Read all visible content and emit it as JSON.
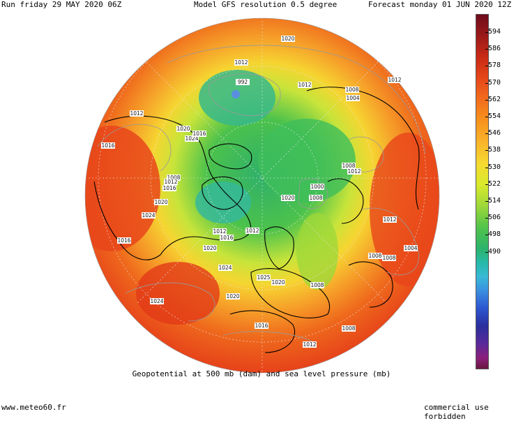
{
  "header": {
    "left": "Run friday 29 MAY 2020 06Z",
    "center": "Model GFS resolution 0.5 degree",
    "right": "Forecast monday 01 JUN 2020 12Z"
  },
  "caption": "Geopotential at 500 mb (dam) and sea level pressure (mb)",
  "footer": {
    "left": "www.meteo60.fr",
    "right": "commercial use forbidden"
  },
  "colorbar": {
    "labels": [
      "594",
      "586",
      "578",
      "570",
      "562",
      "554",
      "546",
      "538",
      "530",
      "522",
      "514",
      "506",
      "498",
      "490"
    ],
    "colors": [
      "#6e0c1c",
      "#c92a14",
      "#f26d1c",
      "#f8b32a",
      "#d9ea2c",
      "#52c44a",
      "#27b9a8",
      "#3a8fe0",
      "#2a2f9d",
      "#8b1f7a"
    ]
  },
  "isobars": [
    {
      "label": "1020"
    },
    {
      "label": "1012"
    },
    {
      "label": "992"
    },
    {
      "label": "1012"
    },
    {
      "label": "1008"
    },
    {
      "label": "1004"
    },
    {
      "label": "1012"
    },
    {
      "label": "1012"
    },
    {
      "label": "1016"
    },
    {
      "label": "1024"
    },
    {
      "label": "1020"
    },
    {
      "label": "1016"
    },
    {
      "label": "1008"
    },
    {
      "label": "1012"
    },
    {
      "label": "1016"
    },
    {
      "label": "1020"
    },
    {
      "label": "1008"
    },
    {
      "label": "1012"
    },
    {
      "label": "1000"
    },
    {
      "label": "1008"
    },
    {
      "label": "1020"
    },
    {
      "label": "1024"
    },
    {
      "label": "1012"
    },
    {
      "label": "1016"
    },
    {
      "label": "1016"
    },
    {
      "label": "1012"
    },
    {
      "label": "1012"
    },
    {
      "label": "1004"
    },
    {
      "label": "1020"
    },
    {
      "label": "1024"
    },
    {
      "label": "1008"
    },
    {
      "label": "1008"
    },
    {
      "label": "1025"
    },
    {
      "label": "1020"
    },
    {
      "label": "1008"
    },
    {
      "label": "1024"
    },
    {
      "label": "1020"
    },
    {
      "label": "1016"
    },
    {
      "label": "1008"
    },
    {
      "label": "1012"
    }
  ]
}
